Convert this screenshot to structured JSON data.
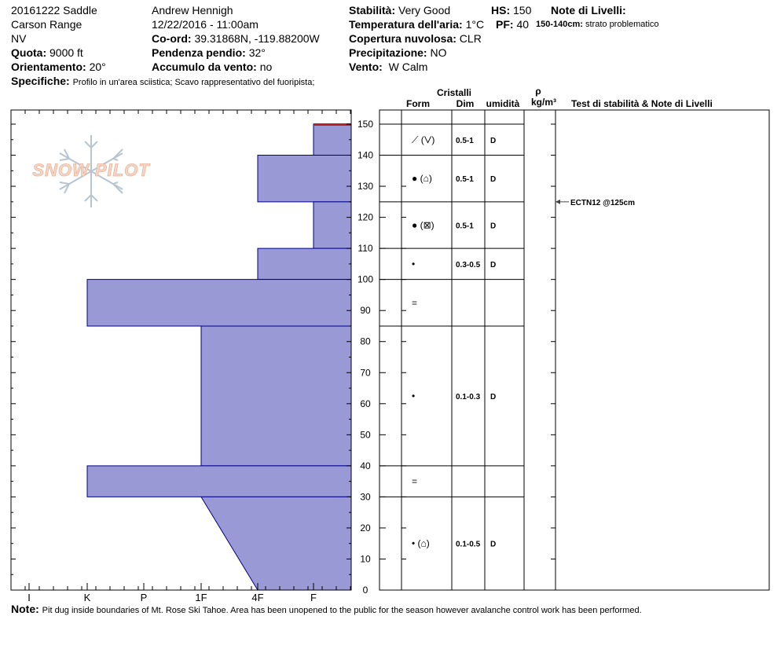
{
  "header": {
    "pit_name_1": "20161222 Saddle",
    "pit_name_2": "Carson Range",
    "state": "NV",
    "elevation_label": "Quota:",
    "elevation_value": "9000 ft",
    "aspect_label": "Orientamento:",
    "aspect_value": "20°",
    "specifics_label": "Specifiche:",
    "specifics_value": "Profilo in un'area sciistica; Scavo rappresentativo del fuoripista;",
    "observer": "Andrew Hennigh",
    "datetime": "12/22/2016 - 11:00am",
    "coords_label": "Co-ord:",
    "coords_value": "39.31868N, -119.88200W",
    "slope_label": "Pendenza pendio:",
    "slope_value": "32°",
    "wind_loading_label": "Accumulo da vento:",
    "wind_loading_value": "no",
    "stability_label": "Stabilità:",
    "stability_value": "Very Good",
    "air_temp_label": "Temperatura dell'aria:",
    "air_temp_value": "1°C",
    "sky_label": "Copertura nuvolosa:",
    "sky_value": "CLR",
    "precip_label": "Precipitazione:",
    "precip_value": "NO",
    "wind_label": "Vento:",
    "wind_value": "W Calm",
    "hs_label": "HS:",
    "hs_value": "150",
    "pf_label": "PF:",
    "pf_value": "40",
    "layer_notes_label": "Note di Livelli:",
    "layer_note_range": "150-140cm:",
    "layer_note_text": "strato problematico",
    "note_label": "Note:",
    "note_value": "Pit dug inside boundaries of Mt. Rose Ski Tahoe. Area has been unopened to the public for the season however avalanche control work has been performed."
  },
  "logo_text": "SNOW PILOT",
  "columns": {
    "crystals": "Cristalli",
    "form": "Form",
    "size": "Dim",
    "moisture": "umidità",
    "rho": "ρ",
    "density": "kg/m³",
    "tests": "Test di stabilità & Note di Livelli"
  },
  "colors": {
    "hardness_fill": "#9999d6",
    "hardness_stroke": "#00008b",
    "problem_layer": "#b22222",
    "grid": "#000000"
  },
  "chart_data": {
    "type": "bar",
    "y_axis": {
      "min": 0,
      "max": 150,
      "ticks": [
        0,
        10,
        20,
        30,
        40,
        50,
        60,
        70,
        80,
        90,
        100,
        110,
        120,
        130,
        140,
        150
      ]
    },
    "x_axis": {
      "categories": [
        "I",
        "K",
        "P",
        "1F",
        "4F",
        "F"
      ]
    },
    "hardness_layers": [
      {
        "top": 150,
        "bottom": 140,
        "hardness_top": "F",
        "hardness_bottom": "F"
      },
      {
        "top": 140,
        "bottom": 125,
        "hardness_top": "4F",
        "hardness_bottom": "4F"
      },
      {
        "top": 125,
        "bottom": 110,
        "hardness_top": "F",
        "hardness_bottom": "F"
      },
      {
        "top": 110,
        "bottom": 100,
        "hardness_top": "4F",
        "hardness_bottom": "4F"
      },
      {
        "top": 100,
        "bottom": 85,
        "hardness_top": "K",
        "hardness_bottom": "K"
      },
      {
        "top": 85,
        "bottom": 40,
        "hardness_top": "1F",
        "hardness_bottom": "1F"
      },
      {
        "top": 40,
        "bottom": 30,
        "hardness_top": "K",
        "hardness_bottom": "K"
      },
      {
        "top": 30,
        "bottom": 0,
        "hardness_top": "1F",
        "hardness_bottom": "4F"
      }
    ],
    "layer_boundaries": [
      150,
      140,
      125,
      110,
      100,
      85,
      40,
      30,
      0
    ],
    "problem_layer_top": 150,
    "layer_details": [
      {
        "top": 150,
        "bottom": 140,
        "form": "⟋ (⋁)",
        "size": "0.5-1",
        "moisture": "D"
      },
      {
        "top": 140,
        "bottom": 125,
        "form": "● (⌂)",
        "size": "0.5-1",
        "moisture": "D"
      },
      {
        "top": 125,
        "bottom": 110,
        "form": "● (⊠)",
        "size": "0.5-1",
        "moisture": "D"
      },
      {
        "top": 110,
        "bottom": 100,
        "form": "•",
        "size": "0.3-0.5",
        "moisture": "D"
      },
      {
        "top": 100,
        "bottom": 85,
        "form": "=",
        "size": "",
        "moisture": ""
      },
      {
        "top": 85,
        "bottom": 40,
        "form": "•",
        "size": "0.1-0.3",
        "moisture": "D"
      },
      {
        "top": 40,
        "bottom": 30,
        "form": "=",
        "size": "",
        "moisture": ""
      },
      {
        "top": 30,
        "bottom": 0,
        "form": "• (⌂)",
        "size": "0.1-0.5",
        "moisture": "D"
      }
    ],
    "stability_tests": [
      {
        "depth": 125,
        "text": "ECTN12 @125cm"
      }
    ]
  }
}
